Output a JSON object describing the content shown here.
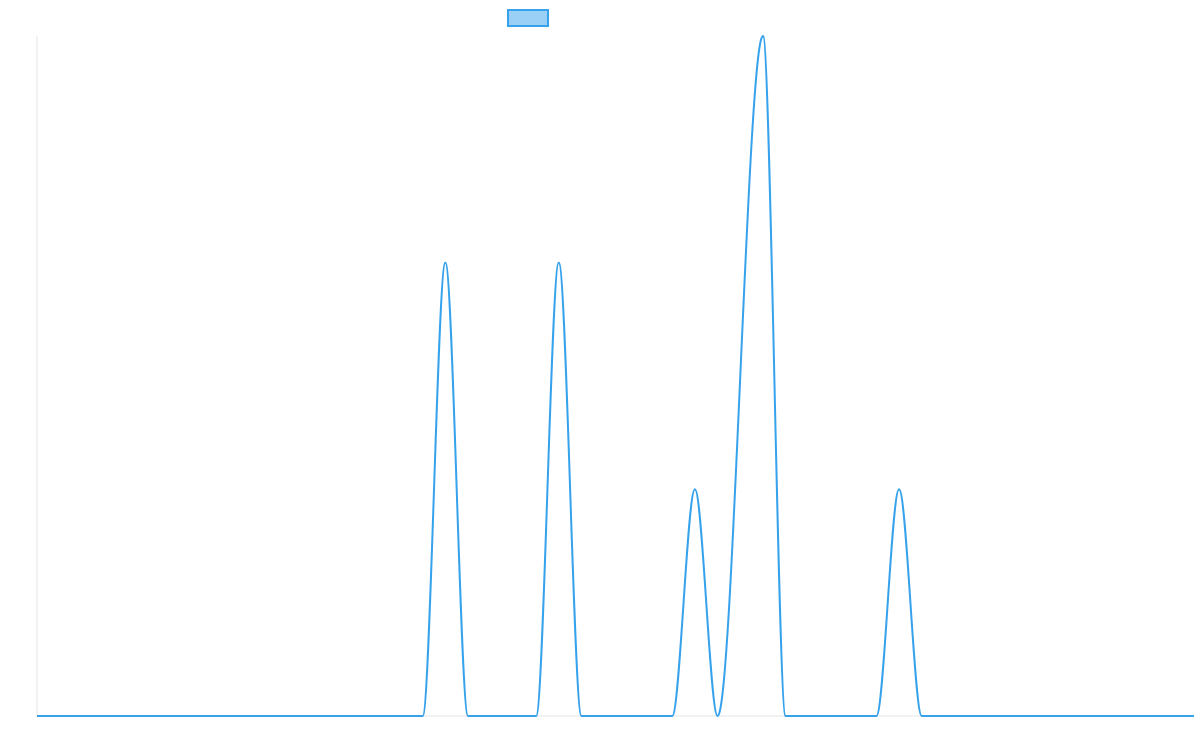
{
  "colors": {
    "series_line": "#36a2eb",
    "legend_fill": "#9ad0f5",
    "legend_stroke": "#36a2eb",
    "axis_line": "#e6e6e6",
    "background": "#ffffff"
  },
  "chart_data": {
    "type": "area",
    "title": "",
    "xlabel": "",
    "ylabel": "",
    "grid": false,
    "legend": {
      "position": "top",
      "entries": [
        {
          "name": ""
        }
      ]
    },
    "xlim": [
      0,
      51
    ],
    "ylim": [
      0,
      3
    ],
    "series": [
      {
        "name": "",
        "points": [
          [
            0,
            0
          ],
          [
            17,
            0
          ],
          [
            18,
            2
          ],
          [
            19,
            0
          ],
          [
            22,
            0
          ],
          [
            23,
            2
          ],
          [
            24,
            0
          ],
          [
            28,
            0
          ],
          [
            29,
            1
          ],
          [
            30,
            0
          ],
          [
            32,
            3
          ],
          [
            33,
            0
          ],
          [
            37,
            0
          ],
          [
            38,
            1
          ],
          [
            39,
            0
          ],
          [
            51,
            0
          ]
        ]
      }
    ]
  }
}
